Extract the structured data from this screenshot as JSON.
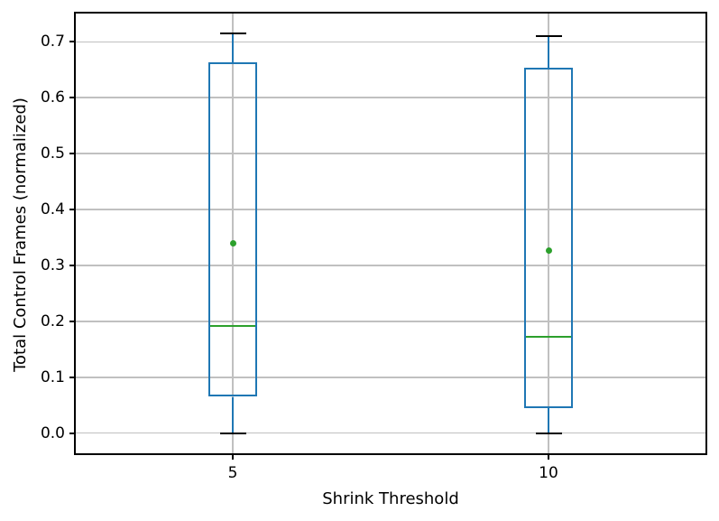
{
  "chart_data": {
    "type": "boxplot",
    "title": "",
    "xlabel": "Shrink Threshold",
    "ylabel": "Total Control Frames (normalized)",
    "categories": [
      "5",
      "10"
    ],
    "ylim": [
      -0.0375,
      0.752
    ],
    "yticks": [
      0.0,
      0.1,
      0.2,
      0.3,
      0.4,
      0.5,
      0.6,
      0.7
    ],
    "ytick_labels": [
      "0.0",
      "0.1",
      "0.2",
      "0.3",
      "0.4",
      "0.5",
      "0.6",
      "0.7"
    ],
    "grid": true,
    "legend": false,
    "series": [
      {
        "category": "5",
        "whisker_low": 0.0,
        "q1": 0.065,
        "median": 0.192,
        "q3": 0.663,
        "whisker_high": 0.715,
        "mean": 0.339
      },
      {
        "category": "10",
        "whisker_low": 0.0,
        "q1": 0.045,
        "median": 0.173,
        "q3": 0.653,
        "whisker_high": 0.71,
        "mean": 0.327
      }
    ],
    "colors": {
      "box": "#1f77b4",
      "whisker": "#1f77b4",
      "cap": "#000000",
      "median": "#2ca02c",
      "mean_marker": "#2ca02c",
      "grid": "#c0c0c0",
      "spine": "#000000",
      "background": "#ffffff"
    }
  }
}
